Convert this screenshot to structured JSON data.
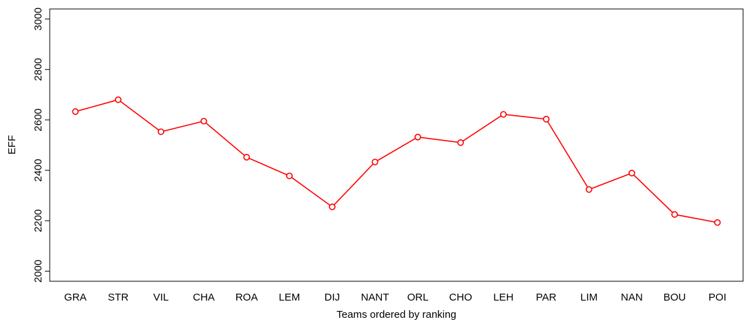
{
  "chart_data": {
    "type": "line",
    "xlabel": "Teams ordered by ranking",
    "ylabel": "EFF",
    "categories": [
      "GRA",
      "STR",
      "VIL",
      "CHA",
      "ROA",
      "LEM",
      "DIJ",
      "NANT",
      "ORL",
      "CHO",
      "LEH",
      "PAR",
      "LIM",
      "NAN",
      "BOU",
      "POI"
    ],
    "series": [
      {
        "color": "#ff0000",
        "values": [
          2633,
          2680,
          2553,
          2595,
          2452,
          2378,
          2255,
          2433,
          2532,
          2510,
          2622,
          2603,
          2324,
          2389,
          2225,
          2193
        ]
      }
    ],
    "ylim": [
      1960,
      3040
    ],
    "yticks": [
      2000,
      2200,
      2400,
      2600,
      2800,
      3000
    ]
  }
}
